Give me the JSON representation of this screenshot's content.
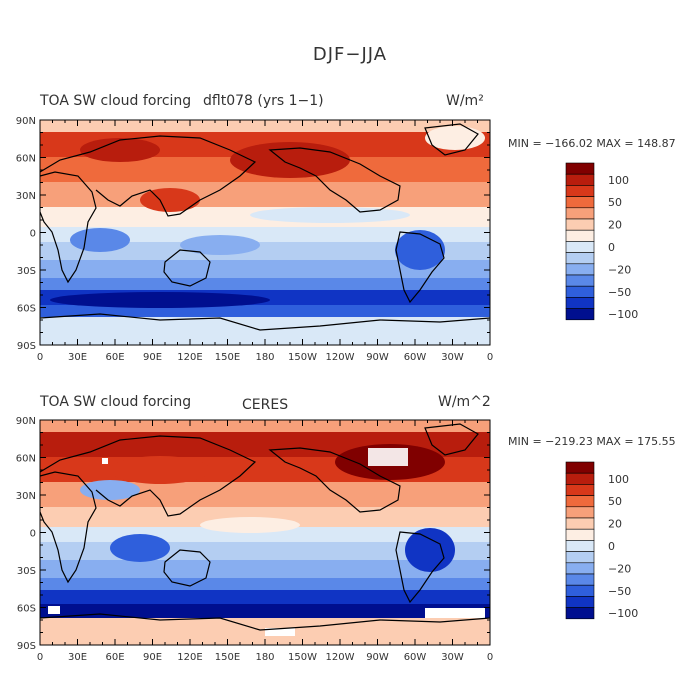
{
  "figure": {
    "title": "DJF−JJA"
  },
  "panels": [
    {
      "left_title": "TOA SW cloud forcing",
      "center_title": "dflt078 (yrs 1−1)",
      "units": "W/m²",
      "stats": "MIN = −166.02  MAX = 148.87",
      "y_ticks": [
        "90N",
        "60N",
        "30N",
        "0",
        "30S",
        "60S",
        "90S"
      ],
      "x_ticks": [
        "0",
        "30E",
        "60E",
        "90E",
        "120E",
        "150E",
        "180",
        "150W",
        "120W",
        "90W",
        "60W",
        "30W",
        "0"
      ],
      "colorbar_labels": [
        "100",
        "50",
        "20",
        "0",
        "−20",
        "−50",
        "−100"
      ]
    },
    {
      "left_title": "TOA SW cloud forcing",
      "center_title": "CERES",
      "units": "W/m^2",
      "stats": "MIN = −219.23  MAX = 175.55",
      "y_ticks": [
        "90N",
        "60N",
        "30N",
        "0",
        "30S",
        "60S",
        "90S"
      ],
      "x_ticks": [
        "0",
        "30E",
        "60E",
        "90E",
        "120E",
        "150E",
        "180",
        "150W",
        "120W",
        "90W",
        "60W",
        "30W",
        "0"
      ],
      "colorbar_labels": [
        "100",
        "50",
        "20",
        "0",
        "−20",
        "−50",
        "−100"
      ]
    }
  ],
  "colorbar_colors": [
    "#800000",
    "#b81d0d",
    "#d8381a",
    "#ef6a3c",
    "#f7a07a",
    "#fccdb2",
    "#fdeee3",
    "#d9e8f7",
    "#b4cef2",
    "#88aef0",
    "#5a88e8",
    "#2f5fdc",
    "#1034c4",
    "#000f8f"
  ]
}
